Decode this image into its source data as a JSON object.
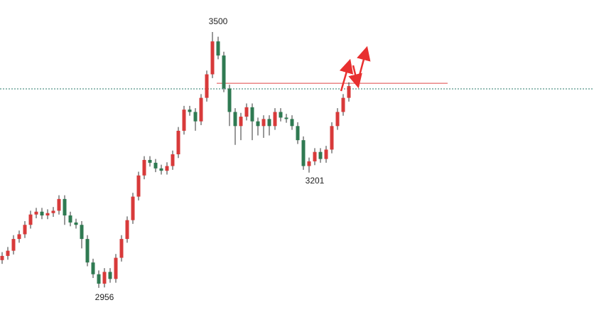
{
  "chart_data": {
    "type": "candlestick",
    "ylim": [
      2909,
      3568
    ],
    "up_color": "#d83a3a",
    "down_color": "#2f7a52",
    "wick_color": "#333",
    "reference_line": 3391,
    "reference_color": "#e04848",
    "price_line": 3379,
    "price_line_color": "#2a7a6a",
    "annotations": [
      "3500",
      "3201",
      "2956"
    ],
    "open": [
      3015,
      3024,
      3035,
      3060,
      3070,
      3090,
      3112,
      3118,
      3110,
      3115,
      3120,
      3145,
      3110,
      3095,
      3090,
      3060,
      3010,
      2985,
      2965,
      2990,
      2975,
      3020,
      3060,
      3100,
      3150,
      3195,
      3228,
      3222,
      3210,
      3205,
      3215,
      3240,
      3290,
      3335,
      3330,
      3310,
      3360,
      3410,
      3480,
      3450,
      3380,
      3330,
      3300,
      3320,
      3340,
      3310,
      3300,
      3315,
      3300,
      3330,
      3318,
      3315,
      3300,
      3270,
      3215,
      3225,
      3245,
      3230,
      3250,
      3300,
      3330,
      3360
    ],
    "high": [
      3032,
      3043,
      3068,
      3078,
      3098,
      3120,
      3126,
      3126,
      3123,
      3128,
      3153,
      3153,
      3118,
      3103,
      3098,
      3068,
      3018,
      2993,
      2998,
      2998,
      3028,
      3068,
      3108,
      3158,
      3203,
      3236,
      3236,
      3230,
      3218,
      3223,
      3248,
      3298,
      3343,
      3343,
      3338,
      3368,
      3418,
      3500,
      3490,
      3458,
      3388,
      3338,
      3328,
      3348,
      3348,
      3318,
      3323,
      3323,
      3338,
      3338,
      3326,
      3323,
      3308,
      3278,
      3233,
      3253,
      3253,
      3258,
      3308,
      3338,
      3368,
      3393
    ],
    "low": [
      3007,
      3016,
      3027,
      3052,
      3062,
      3082,
      3104,
      3102,
      3102,
      3107,
      3112,
      3090,
      3087,
      3082,
      3040,
      3002,
      2977,
      2956,
      2957,
      2967,
      2967,
      3012,
      3052,
      3092,
      3142,
      3187,
      3214,
      3202,
      3197,
      3197,
      3207,
      3232,
      3282,
      3322,
      3290,
      3302,
      3352,
      3402,
      3442,
      3372,
      3300,
      3260,
      3270,
      3312,
      3270,
      3280,
      3275,
      3280,
      3292,
      3310,
      3307,
      3292,
      3262,
      3207,
      3201,
      3217,
      3222,
      3222,
      3242,
      3292,
      3322,
      3352
    ],
    "close": [
      3024,
      3035,
      3060,
      3070,
      3090,
      3112,
      3118,
      3110,
      3115,
      3120,
      3145,
      3110,
      3095,
      3090,
      3060,
      3010,
      2985,
      2965,
      2990,
      2975,
      3020,
      3060,
      3100,
      3150,
      3195,
      3228,
      3222,
      3210,
      3205,
      3215,
      3240,
      3290,
      3335,
      3330,
      3310,
      3360,
      3410,
      3480,
      3450,
      3380,
      3330,
      3300,
      3320,
      3340,
      3310,
      3300,
      3315,
      3300,
      3330,
      3318,
      3315,
      3300,
      3270,
      3215,
      3225,
      3245,
      3230,
      3250,
      3300,
      3330,
      3360,
      3385
    ]
  }
}
